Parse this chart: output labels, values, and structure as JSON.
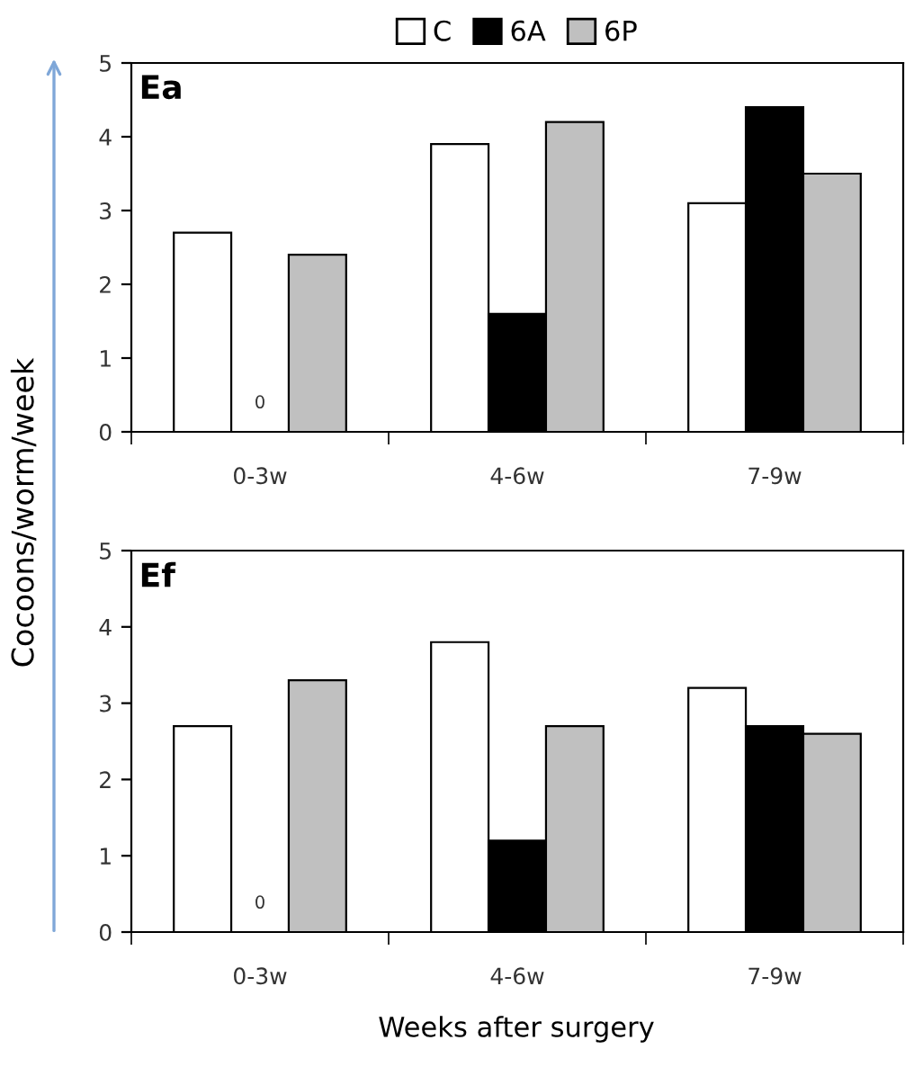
{
  "chart_data": [
    {
      "type": "bar",
      "title": "Ea",
      "ylabel": "Cocoons/worm/week",
      "categories": [
        "0-3w",
        "4-6w",
        "7-9w"
      ],
      "ylim": [
        0,
        5
      ],
      "yticks": [
        0,
        1,
        2,
        3,
        4,
        5
      ],
      "legend": "top",
      "grid": false,
      "series": [
        {
          "name": "C",
          "color": "#ffffff",
          "values": [
            2.7,
            3.9,
            3.1
          ]
        },
        {
          "name": "6A",
          "color": "#000000",
          "values": [
            0,
            1.6,
            4.4
          ],
          "value_labels": [
            "0",
            null,
            null
          ]
        },
        {
          "name": "6P",
          "color": "#c0c0c0",
          "values": [
            2.4,
            4.2,
            3.5
          ]
        }
      ]
    },
    {
      "type": "bar",
      "title": "Ef",
      "xlabel": "Weeks after surgery",
      "categories": [
        "0-3w",
        "4-6w",
        "7-9w"
      ],
      "ylim": [
        0,
        5
      ],
      "yticks": [
        0,
        1,
        2,
        3,
        4,
        5
      ],
      "legend": false,
      "grid": false,
      "series": [
        {
          "color": "#ffffff",
          "values": [
            2.7,
            3.8,
            3.2
          ]
        },
        {
          "color": "#000000",
          "values": [
            0,
            1.2,
            2.7
          ],
          "value_labels": [
            "0",
            null,
            null
          ]
        },
        {
          "color": "#c0c0c0",
          "values": [
            3.3,
            2.7,
            2.6
          ]
        }
      ]
    }
  ]
}
